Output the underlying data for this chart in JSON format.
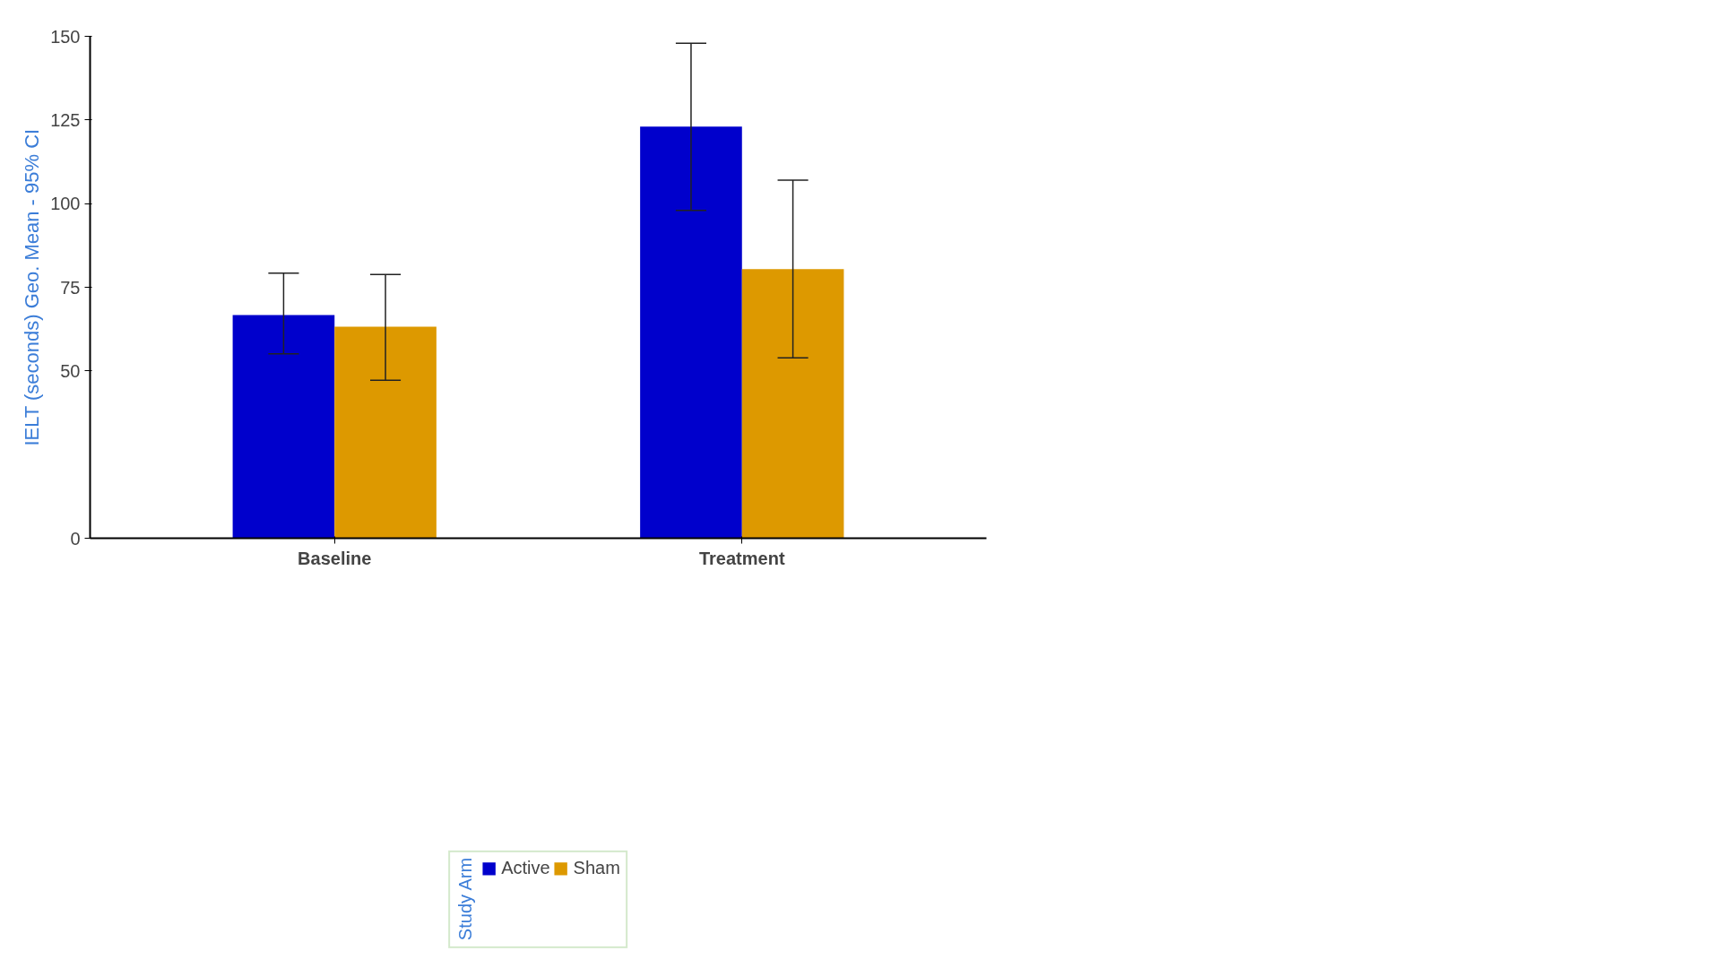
{
  "chart_data": {
    "type": "bar",
    "ylabel": "IELT (seconds) Geo. Mean - 95% CI",
    "legend_title": "Study Arm",
    "categories": [
      "Baseline",
      "Treatment"
    ],
    "series": [
      {
        "name": "Active",
        "color": "#0000cc",
        "values": [
          66.7,
          123.0
        ],
        "errors": [
          [
            55.1,
            79.2
          ],
          [
            98.0,
            147.9
          ]
        ]
      },
      {
        "name": "Sham",
        "color": "#dd9900",
        "values": [
          63.2,
          80.4
        ],
        "errors": [
          [
            47.2,
            78.8
          ],
          [
            53.9,
            107.0
          ]
        ]
      }
    ],
    "ylim": [
      0,
      150
    ],
    "yticks": [
      0,
      50,
      75,
      100,
      125,
      150
    ],
    "grid": false,
    "legend": "bottom"
  }
}
